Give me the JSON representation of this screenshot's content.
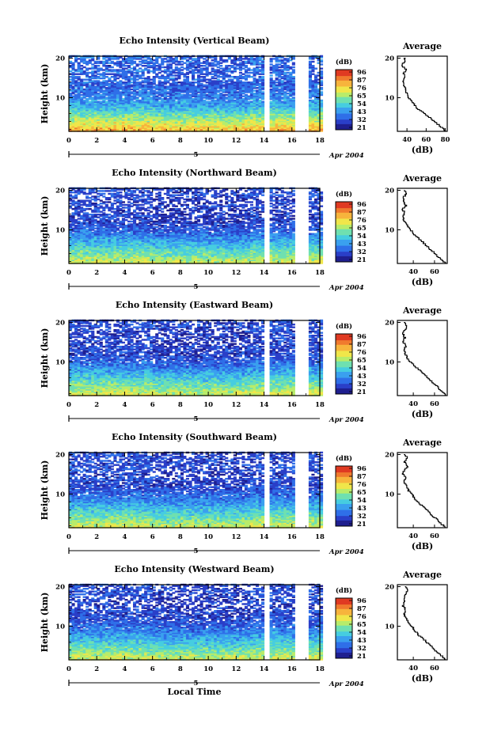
{
  "figure": {
    "xlabel": "Local Time",
    "date_label": "Apr 2004",
    "date_marker": "5",
    "colorbar_unit": "(dB)",
    "colorbar_ticks": [
      "96",
      "87",
      "76",
      "65",
      "54",
      "43",
      "32",
      "21"
    ],
    "colormap": [
      "#1f1f8f",
      "#2a3fc8",
      "#2f6fe8",
      "#3aa0ef",
      "#46cde0",
      "#6fe0b0",
      "#b8ec6a",
      "#f0e64a",
      "#f7b43c",
      "#f07a2e",
      "#e03a22"
    ]
  },
  "chart_data": [
    {
      "type": "heatmap",
      "title": "Echo Intensity (Vertical Beam)",
      "ylabel": "Height (km)",
      "x_ticks": [
        "0",
        "2",
        "4",
        "6",
        "8",
        "10",
        "12",
        "14",
        "16",
        "18"
      ],
      "y_ticks": [
        "10",
        "20"
      ],
      "xlim": [
        0,
        18
      ],
      "ylim": [
        1.5,
        20.5
      ],
      "data_gaps_hours": [
        [
          14.0,
          14.4
        ],
        [
          16.1,
          17.2
        ]
      ],
      "clim_dB": [
        21,
        96
      ],
      "average_profile": {
        "title": "Average",
        "xlabel": "(dB)",
        "x_ticks": [
          "40",
          "60",
          "80"
        ],
        "xlim": [
          30,
          82
        ],
        "y_ticks": [
          "10",
          "20"
        ],
        "ylim": [
          1.5,
          20.5
        ],
        "height_km": [
          1.5,
          2,
          3,
          4,
          5,
          6,
          7,
          8,
          9,
          10,
          11,
          12,
          13,
          14,
          15,
          16,
          17,
          18,
          19,
          20
        ],
        "mean_dB": [
          80,
          79,
          73,
          68,
          63,
          58,
          52,
          48,
          45,
          42,
          40,
          39,
          37,
          36,
          38,
          36,
          39,
          34,
          37,
          38
        ]
      }
    },
    {
      "type": "heatmap",
      "title": "Echo Intensity (Northward Beam)",
      "ylabel": "Height (km)",
      "x_ticks": [
        "0",
        "2",
        "4",
        "6",
        "8",
        "10",
        "12",
        "14",
        "16",
        "18"
      ],
      "y_ticks": [
        "10",
        "20"
      ],
      "xlim": [
        0,
        18
      ],
      "ylim": [
        1.5,
        20.5
      ],
      "data_gaps_hours": [
        [
          14.0,
          14.4
        ],
        [
          16.1,
          17.2
        ]
      ],
      "clim_dB": [
        21,
        96
      ],
      "average_profile": {
        "title": "Average",
        "xlabel": "(dB)",
        "x_ticks": [
          "40",
          "60"
        ],
        "xlim": [
          25,
          72
        ],
        "y_ticks": [
          "10",
          "20"
        ],
        "ylim": [
          1.5,
          20.5
        ],
        "height_km": [
          1.5,
          2,
          3,
          4,
          5,
          6,
          7,
          8,
          9,
          10,
          11,
          12,
          13,
          14,
          15,
          16,
          17,
          18,
          19,
          20
        ],
        "mean_dB": [
          70,
          68,
          64,
          60,
          56,
          52,
          48,
          44,
          40,
          37,
          34,
          32,
          30,
          32,
          30,
          33,
          31,
          30,
          34,
          32
        ]
      }
    },
    {
      "type": "heatmap",
      "title": "Echo Intensity (Eastward Beam)",
      "ylabel": "Height (km)",
      "x_ticks": [
        "0",
        "2",
        "4",
        "6",
        "8",
        "10",
        "12",
        "14",
        "16",
        "18"
      ],
      "y_ticks": [
        "10",
        "20"
      ],
      "xlim": [
        0,
        18
      ],
      "ylim": [
        1.5,
        20.5
      ],
      "data_gaps_hours": [
        [
          14.0,
          14.4
        ],
        [
          16.1,
          17.2
        ]
      ],
      "clim_dB": [
        21,
        96
      ],
      "average_profile": {
        "title": "Average",
        "xlabel": "(dB)",
        "x_ticks": [
          "40",
          "60"
        ],
        "xlim": [
          25,
          72
        ],
        "y_ticks": [
          "10",
          "20"
        ],
        "ylim": [
          1.5,
          20.5
        ],
        "height_km": [
          1.5,
          2,
          3,
          4,
          5,
          6,
          7,
          8,
          9,
          10,
          11,
          12,
          13,
          14,
          15,
          16,
          17,
          18,
          19,
          20
        ],
        "mean_dB": [
          70,
          69,
          65,
          61,
          57,
          53,
          49,
          45,
          41,
          37,
          34,
          32,
          31,
          33,
          30,
          32,
          30,
          32,
          34,
          32
        ]
      }
    },
    {
      "type": "heatmap",
      "title": "Echo Intensity (Southward Beam)",
      "ylabel": "Height (km)",
      "x_ticks": [
        "0",
        "2",
        "4",
        "6",
        "8",
        "10",
        "12",
        "14",
        "16",
        "18"
      ],
      "y_ticks": [
        "10",
        "20"
      ],
      "xlim": [
        0,
        18
      ],
      "ylim": [
        1.5,
        20.5
      ],
      "data_gaps_hours": [
        [
          14.0,
          14.4
        ],
        [
          16.1,
          17.2
        ]
      ],
      "clim_dB": [
        21,
        96
      ],
      "average_profile": {
        "title": "Average",
        "xlabel": "(dB)",
        "x_ticks": [
          "40",
          "60"
        ],
        "xlim": [
          25,
          72
        ],
        "y_ticks": [
          "10",
          "20"
        ],
        "ylim": [
          1.5,
          20.5
        ],
        "height_km": [
          1.5,
          2,
          3,
          4,
          5,
          6,
          7,
          8,
          9,
          10,
          11,
          12,
          13,
          14,
          15,
          16,
          17,
          18,
          19,
          20
        ],
        "mean_dB": [
          70,
          68,
          64,
          60,
          56,
          52,
          48,
          44,
          41,
          38,
          35,
          33,
          31,
          33,
          30,
          32,
          35,
          31,
          34,
          32
        ]
      }
    },
    {
      "type": "heatmap",
      "title": "Echo Intensity (Westward Beam)",
      "ylabel": "Height (km)",
      "x_ticks": [
        "0",
        "2",
        "4",
        "6",
        "8",
        "10",
        "12",
        "14",
        "16",
        "18"
      ],
      "y_ticks": [
        "10",
        "20"
      ],
      "xlim": [
        0,
        18
      ],
      "ylim": [
        1.5,
        20.5
      ],
      "data_gaps_hours": [
        [
          14.0,
          14.4
        ],
        [
          16.1,
          17.2
        ]
      ],
      "clim_dB": [
        21,
        96
      ],
      "average_profile": {
        "title": "Average",
        "xlabel": "(dB)",
        "x_ticks": [
          "40",
          "60"
        ],
        "xlim": [
          25,
          72
        ],
        "y_ticks": [
          "10",
          "20"
        ],
        "ylim": [
          1.5,
          20.5
        ],
        "height_km": [
          1.5,
          2,
          3,
          4,
          5,
          6,
          7,
          8,
          9,
          10,
          11,
          12,
          13,
          14,
          15,
          16,
          17,
          18,
          19,
          20
        ],
        "mean_dB": [
          70,
          68,
          64,
          60,
          56,
          52,
          48,
          44,
          41,
          38,
          35,
          33,
          31,
          33,
          30,
          32,
          31,
          33,
          34,
          32
        ]
      }
    }
  ]
}
